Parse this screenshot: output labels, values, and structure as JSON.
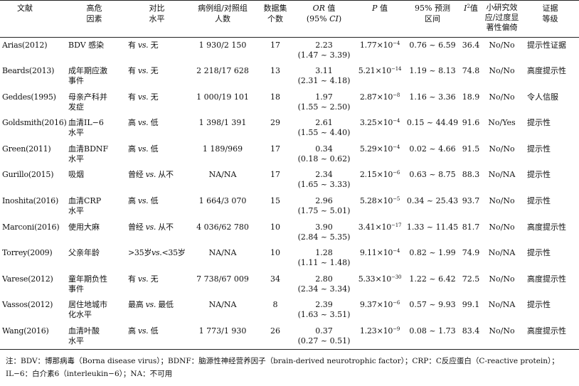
{
  "headers": {
    "literature": "文献",
    "risk_factor_1": "高危",
    "risk_factor_2": "因素",
    "comparison_1": "对比",
    "comparison_2": "水平",
    "cases_1": "病例组/对照组",
    "cases_2": "人数",
    "datasets_1": "数据集",
    "datasets_2": "个数",
    "or_1": "OR",
    "or_1b": " 值",
    "or_2a": "(95% ",
    "or_2b": "CI",
    "or_2c": ")",
    "p_a": "P",
    "p_b": " 值",
    "pred_1": "95% 预测",
    "pred_2": "区间",
    "i2_a": "I",
    "i2_sup": "2",
    "i2_b": "值",
    "small_1": "小研究效",
    "small_2": "应/过度显",
    "small_3": "著性偏倚",
    "evidence_1": "证据",
    "evidence_2": "等级"
  },
  "rows": [
    {
      "literature": "Arias(2012)",
      "risk_factor": [
        "BDV 感染"
      ],
      "comparison": "有 vs. 无",
      "cases": "1 930/2 150",
      "datasets": "17",
      "or": "2.23",
      "ci": "(1.47 ~ 3.39)",
      "p_base": "1.77×10",
      "p_exp": "−4",
      "pred": "0.76 ~ 6.59",
      "i2": "36.4",
      "small": "No/No",
      "evidence": "提示性证据"
    },
    {
      "literature": "Beards(2013)",
      "risk_factor": [
        "成年期应激",
        "事件"
      ],
      "comparison": "有 vs. 无",
      "cases": "2 218/17 628",
      "datasets": "13",
      "or": "3.11",
      "ci": "(2.31 ~ 4.18)",
      "p_base": "5.21×10",
      "p_exp": "−14",
      "pred": "1.19 ~ 8.13",
      "i2": "74.8",
      "small": "No/No",
      "evidence": "高度提示性"
    },
    {
      "literature": "Geddes(1995)",
      "risk_factor": [
        "母亲产科并",
        "发症"
      ],
      "comparison": "有 vs. 无",
      "cases": "1 000/19 101",
      "datasets": "18",
      "or": "1.97",
      "ci": "(1.55 ~ 2.50)",
      "p_base": "2.87×10",
      "p_exp": "−8",
      "pred": "1.16 ~ 3.36",
      "i2": "18.9",
      "small": "No/No",
      "evidence": "令人信服"
    },
    {
      "literature": "Goldsmith(2016)",
      "risk_factor": [
        "血清IL−6",
        "水平"
      ],
      "comparison": "高 vs. 低",
      "cases": "1 398/1 391",
      "datasets": "29",
      "or": "2.61",
      "ci": "(1.55 ~ 4.40)",
      "p_base": "3.25×10",
      "p_exp": "−4",
      "pred": "0.15 ~ 44.49",
      "i2": "91.6",
      "small": "No/Yes",
      "evidence": "提示性"
    },
    {
      "literature": "Green(2011)",
      "risk_factor": [
        "血清BDNF",
        "水平"
      ],
      "comparison": "高 vs. 低",
      "cases": "1 189/969",
      "datasets": "17",
      "or": "0.34",
      "ci": "(0.18 ~ 0.62)",
      "p_base": "5.29×10",
      "p_exp": "−4",
      "pred": "0.02 ~ 4.66",
      "i2": "91.5",
      "small": "No/No",
      "evidence": "提示性"
    },
    {
      "literature": "Gurillo(2015)",
      "risk_factor": [
        "吸烟"
      ],
      "comparison": "曾经 vs. 从不",
      "cases": "NA/NA",
      "datasets": "17",
      "or": "2.34",
      "ci": "(1.65 ~ 3.33)",
      "p_base": "2.15×10",
      "p_exp": "−6",
      "pred": "0.63 ~ 8.75",
      "i2": "88.3",
      "small": "No/NA",
      "evidence": "提示性"
    },
    {
      "literature": "Inoshita(2016)",
      "risk_factor": [
        "血清CRP",
        "水平"
      ],
      "comparison": "高 vs. 低",
      "cases": "1 664/3 070",
      "datasets": "15",
      "or": "2.96",
      "ci": "(1.75 ~ 5.01)",
      "p_base": "5.28×10",
      "p_exp": "−5",
      "pred": "0.34 ~ 25.43",
      "i2": "93.7",
      "small": "No/No",
      "evidence": "提示性"
    },
    {
      "literature": "Marconi(2016)",
      "risk_factor": [
        "使用大麻"
      ],
      "comparison": "曾经 vs. 从不",
      "cases": "4 036/62 780",
      "datasets": "10",
      "or": "3.90",
      "ci": "(2.84 ~ 5.35)",
      "p_base": "3.41×10",
      "p_exp": "−17",
      "pred": "1.33 ~ 11.45",
      "i2": "81.7",
      "small": "No/No",
      "evidence": "高度提示性"
    },
    {
      "literature": "Torrey(2009)",
      "risk_factor": [
        "父亲年龄"
      ],
      "comparison": ">35岁vs.<35岁",
      "cases": "NA/NA",
      "datasets": "10",
      "or": "1.28",
      "ci": "(1.11 ~ 1.48)",
      "p_base": "9.11×10",
      "p_exp": "−4",
      "pred": "0.82 ~ 1.99",
      "i2": "74.9",
      "small": "No/NA",
      "evidence": "提示性"
    },
    {
      "literature": "Varese(2012)",
      "risk_factor": [
        "童年期负性",
        "事件"
      ],
      "comparison": "有 vs. 无",
      "cases": "7 738/67 009",
      "datasets": "34",
      "or": "2.80",
      "ci": "(2.34 ~ 3.34)",
      "p_base": "5.33×10",
      "p_exp": "−30",
      "pred": "1.22 ~ 6.42",
      "i2": "72.5",
      "small": "No/No",
      "evidence": "高度提示性"
    },
    {
      "literature": "Vassos(2012)",
      "risk_factor": [
        "居住地城市",
        "化水平"
      ],
      "comparison": "最高 vs. 最低",
      "cases": "NA/NA",
      "datasets": "8",
      "or": "2.39",
      "ci": "(1.63 ~ 3.51)",
      "p_base": "9.37×10",
      "p_exp": "−6",
      "pred": "0.57 ~ 9.93",
      "i2": "99.1",
      "small": "No/NA",
      "evidence": "提示性"
    },
    {
      "literature": "Wang(2016)",
      "risk_factor": [
        "血清叶酸",
        "水平"
      ],
      "comparison": "高 vs. 低",
      "cases": "1 773/1 930",
      "datasets": "26",
      "or": "0.37",
      "ci": "(0.27 ~ 0.51)",
      "p_base": "1.23×10",
      "p_exp": "−9",
      "pred": "0.08 ~ 1.73",
      "i2": "83.4",
      "small": "No/No",
      "evidence": "高度提示性"
    }
  ],
  "note": "注：BDV：博那病毒（Borna disease virus）；BDNF：脑源性神经营养因子（brain-derived neurotrophic factor）；CRP：C反应蛋白（C-reactive protein）；IL−6：白介素6（interleukin−6）；NA：不可用"
}
